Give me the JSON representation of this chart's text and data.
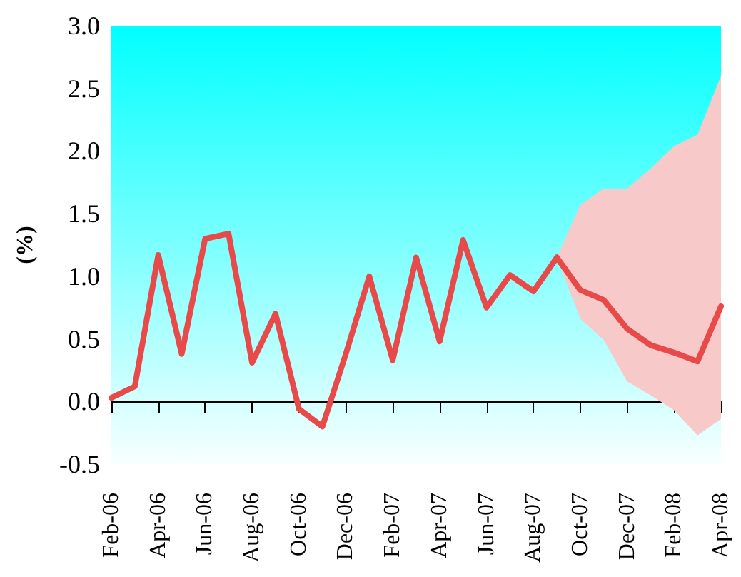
{
  "chart_data": {
    "type": "line",
    "ylabel": "(%)",
    "categories": [
      "Feb-06",
      null,
      "Apr-06",
      null,
      "Jun-06",
      null,
      "Aug-06",
      null,
      "Oct-06",
      null,
      "Dec-06",
      null,
      "Feb-07",
      null,
      "Apr-07",
      null,
      "Jun-07",
      null,
      "Aug-07",
      null,
      "Oct-07",
      null,
      "Dec-07",
      null,
      "Feb-08",
      null,
      "Apr-08"
    ],
    "series": [
      {
        "color": "#e84a4a",
        "values": [
          0.03,
          0.12,
          1.17,
          0.38,
          1.3,
          1.34,
          0.31,
          0.7,
          -0.06,
          -0.2,
          0.38,
          1.0,
          0.33,
          1.15,
          0.48,
          1.29,
          0.75,
          1.01,
          0.88,
          1.15,
          null,
          null,
          null,
          null,
          null,
          null,
          null
        ]
      },
      {
        "color": "#e84a4a",
        "values": [
          null,
          null,
          null,
          null,
          null,
          null,
          null,
          null,
          null,
          null,
          null,
          null,
          null,
          null,
          null,
          null,
          null,
          null,
          null,
          1.15,
          0.89,
          0.81,
          0.58,
          0.45,
          0.39,
          0.32,
          0.76
        ],
        "lower": [
          null,
          null,
          null,
          null,
          null,
          null,
          null,
          null,
          null,
          null,
          null,
          null,
          null,
          null,
          null,
          null,
          null,
          null,
          null,
          1.15,
          0.66,
          0.49,
          0.16,
          0.05,
          -0.07,
          -0.27,
          -0.14
        ],
        "upper": [
          null,
          null,
          null,
          null,
          null,
          null,
          null,
          null,
          null,
          null,
          null,
          null,
          null,
          null,
          null,
          null,
          null,
          null,
          null,
          1.15,
          1.57,
          1.7,
          1.7,
          1.86,
          2.04,
          2.13,
          2.6
        ]
      }
    ],
    "ylim": [
      -0.5,
      3
    ],
    "yticks": [
      {
        "value": -0.5,
        "label": "-0.5"
      },
      {
        "value": 0,
        "label": "0.0"
      },
      {
        "value": 0.5,
        "label": "0.5"
      },
      {
        "value": 1,
        "label": "1.0"
      },
      {
        "value": 1.5,
        "label": "1.5"
      },
      {
        "value": 2,
        "label": "2.0"
      },
      {
        "value": 2.5,
        "label": "2.5"
      },
      {
        "value": 3,
        "label": "3.0"
      }
    ],
    "marker": "none",
    "line_style": "solid"
  }
}
